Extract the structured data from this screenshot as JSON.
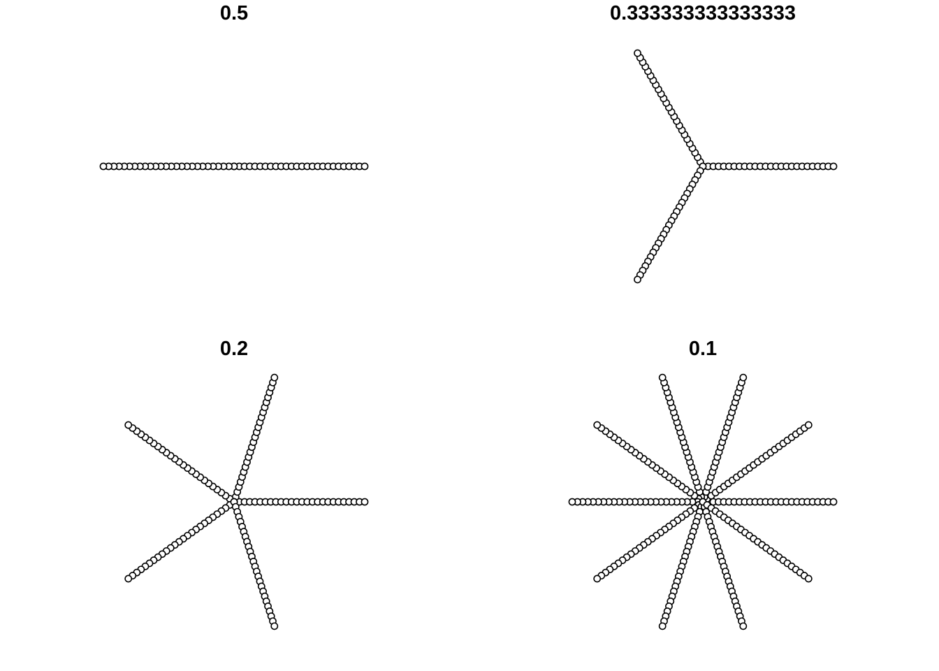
{
  "chart_data": [
    {
      "type": "scatter",
      "title": "0.5",
      "fraction": 0.5,
      "arms": 2,
      "points_per_arm": 26,
      "radius_range": [
        0,
        1
      ],
      "marker": "open-circle",
      "axes": "none",
      "grid": false,
      "xlabel": "",
      "ylabel": ""
    },
    {
      "type": "scatter",
      "title": "0.333333333333333",
      "fraction": 0.333333333333333,
      "arms": 3,
      "points_per_arm": 26,
      "radius_range": [
        0,
        1
      ],
      "marker": "open-circle",
      "axes": "none",
      "grid": false,
      "xlabel": "",
      "ylabel": ""
    },
    {
      "type": "scatter",
      "title": "0.2",
      "fraction": 0.2,
      "arms": 5,
      "points_per_arm": 26,
      "radius_range": [
        0,
        1
      ],
      "marker": "open-circle",
      "axes": "none",
      "grid": false,
      "xlabel": "",
      "ylabel": ""
    },
    {
      "type": "scatter",
      "title": "0.1",
      "fraction": 0.1,
      "arms": 10,
      "points_per_arm": 26,
      "radius_range": [
        0,
        1
      ],
      "marker": "open-circle",
      "axes": "none",
      "grid": false,
      "xlabel": "",
      "ylabel": ""
    }
  ],
  "colors": {
    "background": "#ffffff",
    "marker_stroke": "#000000",
    "marker_fill": "#ffffff",
    "text": "#000000"
  }
}
